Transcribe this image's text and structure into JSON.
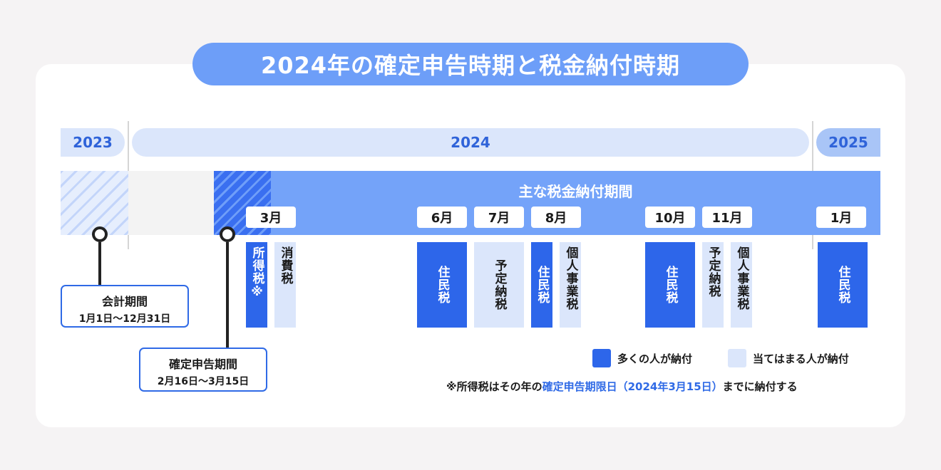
{
  "title": "2024年の確定申告時期と税金納付時期",
  "years": {
    "y2023": "2023",
    "y2024": "2024",
    "y2025": "2025"
  },
  "band_label": "主な税金納付期間",
  "months": [
    "3月",
    "6月",
    "7月",
    "8月",
    "10月",
    "11月",
    "1月"
  ],
  "accounting_period": {
    "title": "会計期間",
    "range": "1月1日〜12月31日"
  },
  "filing_period": {
    "title": "確定申告期間",
    "range": "2月16日〜3月15日"
  },
  "taxes": [
    {
      "label": "所得税※",
      "type": "many"
    },
    {
      "label": "消費税",
      "type": "applicable"
    },
    {
      "label": "住民税",
      "type": "many"
    },
    {
      "label": "予定納税",
      "type": "applicable"
    },
    {
      "label": "住民税",
      "type": "many"
    },
    {
      "label": "個人事業税",
      "type": "applicable"
    },
    {
      "label": "住民税",
      "type": "many"
    },
    {
      "label": "予定納税",
      "type": "applicable"
    },
    {
      "label": "個人事業税",
      "type": "applicable"
    },
    {
      "label": "住民税",
      "type": "many"
    }
  ],
  "legend": {
    "many": "多くの人が納付",
    "applicable": "当てはまる人が納付"
  },
  "note": {
    "prefix": "※所得税はその年の",
    "highlight": "確定申告期限日（2024年3月15日）",
    "suffix": "までに納付する"
  },
  "colors": {
    "dark_blue": "#2d66ea",
    "light_blue": "#dbe6fb",
    "band_blue": "#74a3f9",
    "title_blue": "#6d9ef8"
  }
}
